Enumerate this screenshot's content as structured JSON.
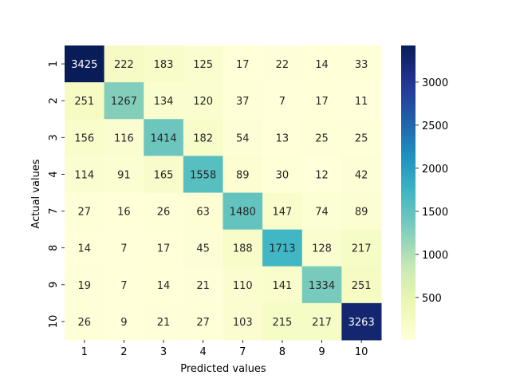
{
  "chart_data": {
    "type": "heatmap",
    "title": "",
    "xlabel": "Predicted values",
    "ylabel": "Actual values",
    "x_categories": [
      "1",
      "2",
      "3",
      "4",
      "7",
      "8",
      "9",
      "10"
    ],
    "y_categories": [
      "1",
      "2",
      "3",
      "4",
      "7",
      "8",
      "9",
      "10"
    ],
    "matrix": [
      [
        3425,
        222,
        183,
        125,
        17,
        22,
        14,
        33
      ],
      [
        251,
        1267,
        134,
        120,
        37,
        7,
        17,
        11
      ],
      [
        156,
        116,
        1414,
        182,
        54,
        13,
        25,
        25
      ],
      [
        114,
        91,
        165,
        1558,
        89,
        30,
        12,
        42
      ],
      [
        27,
        16,
        26,
        63,
        1480,
        147,
        74,
        89
      ],
      [
        14,
        7,
        17,
        45,
        188,
        1713,
        128,
        217
      ],
      [
        19,
        7,
        14,
        21,
        110,
        141,
        1334,
        251
      ],
      [
        26,
        9,
        21,
        27,
        103,
        215,
        217,
        3263
      ]
    ],
    "colormap": "YlGnBu",
    "vmin": 7,
    "vmax": 3425,
    "colorbar_ticks": [
      500,
      1000,
      1500,
      2000,
      2500,
      3000
    ],
    "annotations": true,
    "grid": false
  }
}
